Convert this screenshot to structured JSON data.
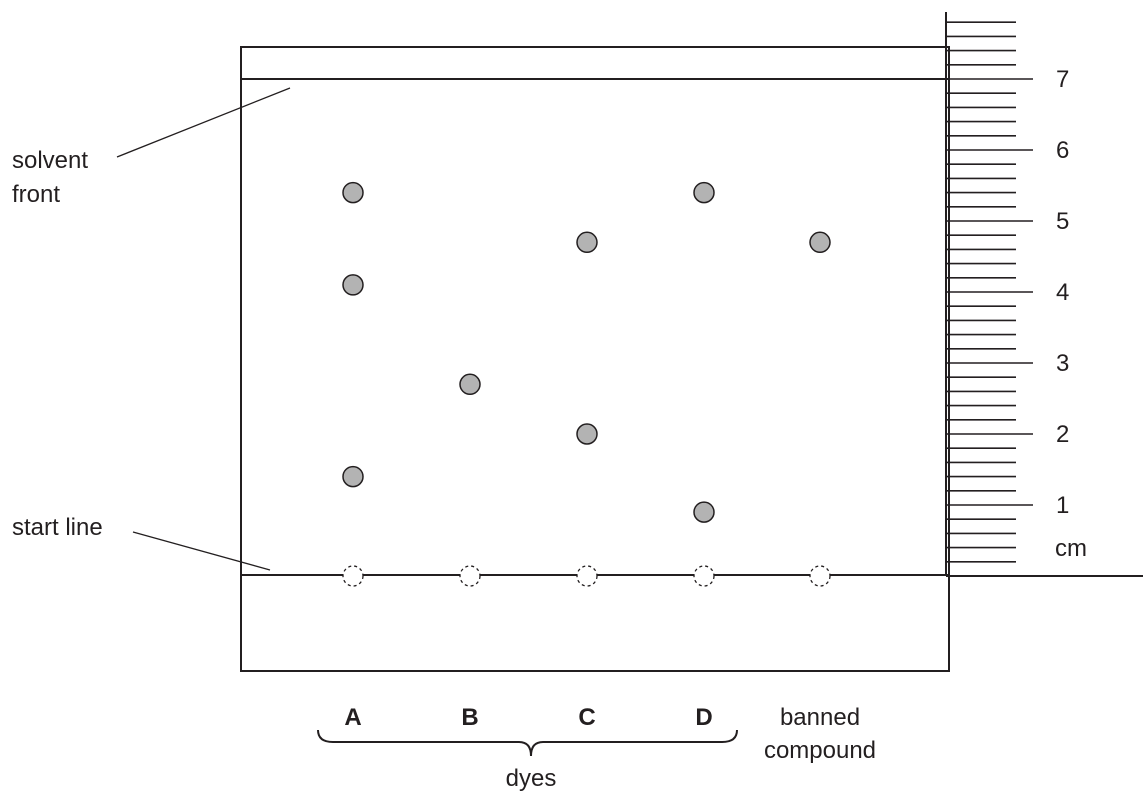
{
  "labels": {
    "solvent_front_line1": "solvent",
    "solvent_front_line2": "front",
    "start_line": "start line",
    "ruler_unit": "cm",
    "dyes_group": "dyes"
  },
  "lanes": [
    {
      "id": "A",
      "label": "A",
      "bold": true,
      "spots_cm": [
        1.4,
        4.1,
        5.4
      ]
    },
    {
      "id": "B",
      "label": "B",
      "bold": true,
      "spots_cm": [
        2.7
      ]
    },
    {
      "id": "C",
      "label": "C",
      "bold": true,
      "spots_cm": [
        2.0,
        4.7
      ]
    },
    {
      "id": "D",
      "label": "D",
      "bold": true,
      "spots_cm": [
        0.9,
        5.4
      ]
    },
    {
      "id": "banned",
      "label_line1": "banned",
      "label_line2": "compound",
      "bold": false,
      "spots_cm": [
        4.7
      ]
    }
  ],
  "solvent_front_cm": 7.0,
  "ruler": {
    "min_cm": 0,
    "max_cm": 7.8,
    "minor_step_cm": 0.2,
    "major_labels": [
      "1",
      "2",
      "3",
      "4",
      "5",
      "6",
      "7"
    ]
  }
}
